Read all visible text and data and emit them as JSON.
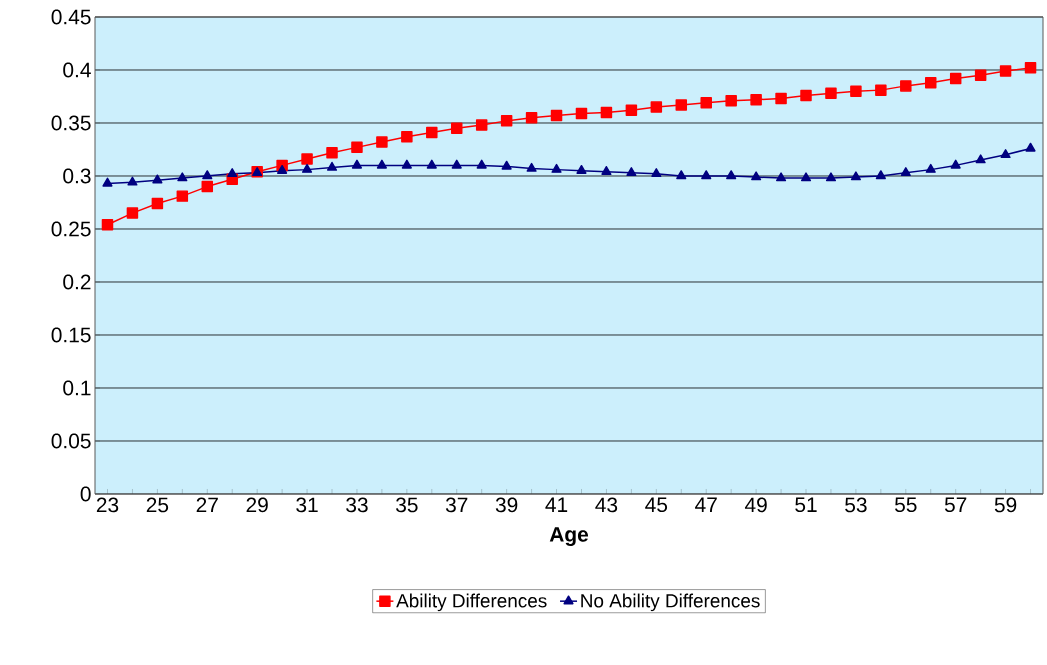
{
  "chart_data": {
    "type": "line",
    "xlabel": "Age",
    "categories": [
      "23",
      null,
      "25",
      null,
      "27",
      null,
      "29",
      null,
      "31",
      null,
      "33",
      null,
      "35",
      null,
      "37",
      null,
      "39",
      null,
      "41",
      null,
      "43",
      null,
      "45",
      null,
      "47",
      null,
      "49",
      null,
      "51",
      null,
      "53",
      null,
      "55",
      null,
      "57",
      null,
      "59",
      null
    ],
    "series": [
      {
        "name": "Ability Differences",
        "color": "#ff0000",
        "marker": "square",
        "values": [
          0.254,
          0.265,
          0.274,
          0.281,
          0.29,
          0.297,
          0.304,
          0.31,
          0.316,
          0.322,
          0.327,
          0.332,
          0.337,
          0.341,
          0.345,
          0.348,
          0.352,
          0.355,
          0.357,
          0.359,
          0.36,
          0.362,
          0.365,
          0.367,
          0.369,
          0.371,
          0.372,
          0.373,
          0.376,
          0.378,
          0.38,
          0.381,
          0.385,
          0.388,
          0.392,
          0.395,
          0.399,
          0.402
        ]
      },
      {
        "name": "No Ability Differences",
        "color": "#000080",
        "marker": "triangle",
        "values": [
          0.293,
          0.294,
          0.296,
          0.298,
          0.3,
          0.302,
          0.303,
          0.305,
          0.306,
          0.308,
          0.31,
          0.31,
          0.31,
          0.31,
          0.31,
          0.31,
          0.309,
          0.307,
          0.306,
          0.305,
          0.304,
          0.303,
          0.302,
          0.3,
          0.3,
          0.3,
          0.299,
          0.298,
          0.298,
          0.298,
          0.299,
          0.3,
          0.303,
          0.306,
          0.31,
          0.315,
          0.32,
          0.326
        ]
      }
    ],
    "ylim": [
      0,
      0.45
    ],
    "yticks": [
      0,
      0.05,
      0.1,
      0.15,
      0.2,
      0.25,
      0.3,
      0.35,
      0.4,
      0.45
    ],
    "grid": "y",
    "legend": "bottom",
    "line_style": "solid"
  }
}
